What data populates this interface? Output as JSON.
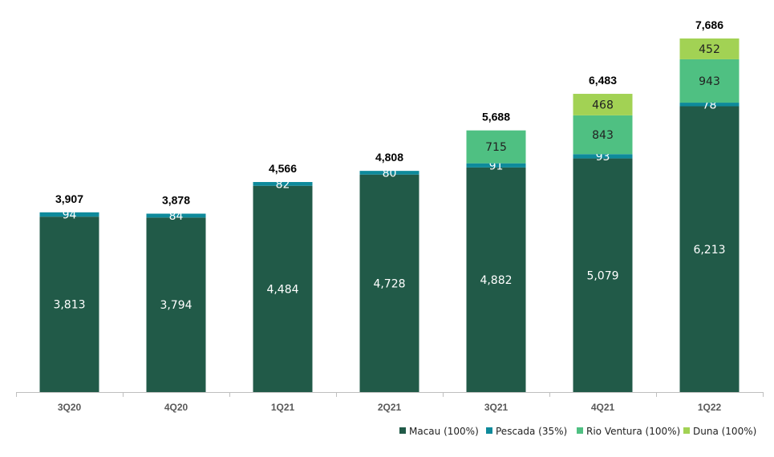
{
  "chart_data": {
    "type": "bar",
    "stacked": true,
    "title": "",
    "xlabel": "",
    "ylabel": "",
    "categories": [
      "3Q20",
      "4Q20",
      "1Q21",
      "2Q21",
      "3Q21",
      "4Q21",
      "1Q22"
    ],
    "ylim": [
      0,
      8000
    ],
    "grid": false,
    "legend_position": "bottom-right",
    "series": [
      {
        "name": "Macau (100%)",
        "color": "#215a48",
        "label_color": "#ffffff",
        "values": [
          3813,
          3794,
          4484,
          4728,
          4882,
          5079,
          6213
        ]
      },
      {
        "name": "Pescada (35%)",
        "color": "#0e8a9b",
        "label_color": "#ffffff",
        "values": [
          94,
          84,
          82,
          80,
          91,
          93,
          78
        ]
      },
      {
        "name": "Rio Ventura (100%)",
        "color": "#4fc082",
        "label_color": "#222222",
        "values": [
          null,
          null,
          null,
          null,
          715,
          843,
          943
        ]
      },
      {
        "name": "Duna (100%)",
        "color": "#a2d254",
        "label_color": "#222222",
        "values": [
          null,
          null,
          null,
          null,
          null,
          468,
          452
        ]
      }
    ],
    "totals": [
      3907,
      3878,
      4566,
      4808,
      5688,
      6483,
      7686
    ]
  }
}
